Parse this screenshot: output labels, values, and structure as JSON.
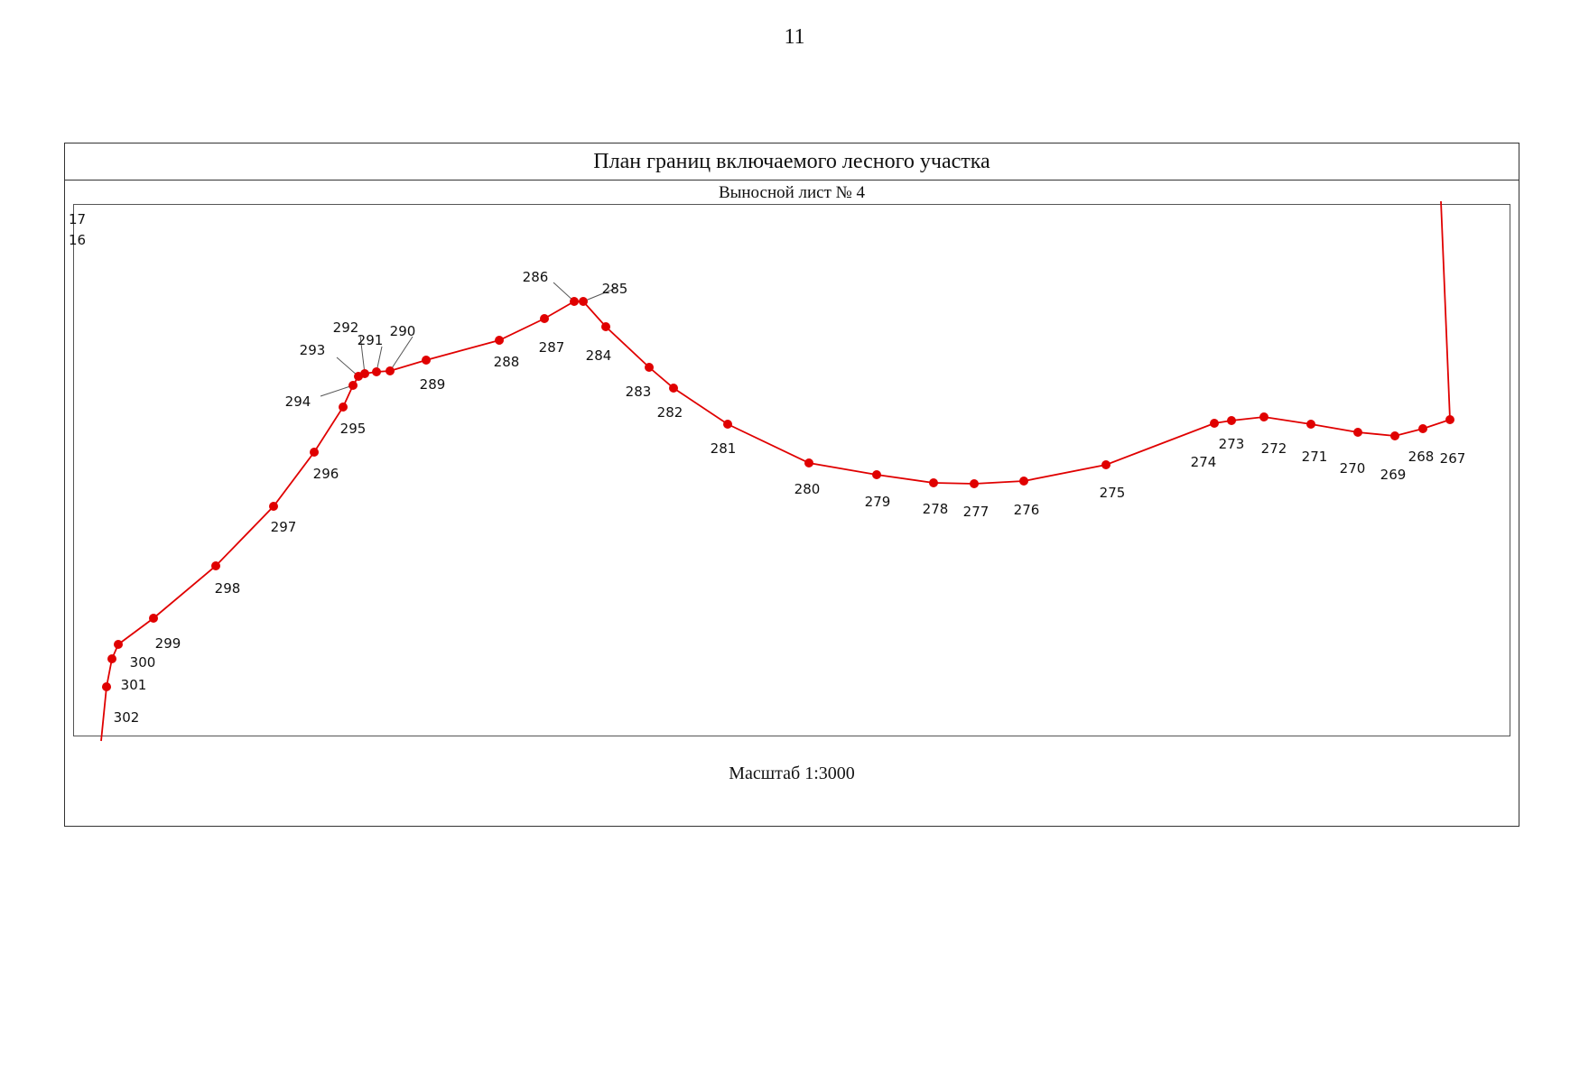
{
  "page_number": "11",
  "frame_title": "План границ включаемого лесного участка",
  "sheet_label": "Выносной лист № 4",
  "scale_label": "Масштаб 1:3000",
  "boundary_color": "#e00000",
  "edge_labels": [
    "17",
    "16"
  ],
  "boundary_points": [
    {
      "id": "267",
      "label": "267"
    },
    {
      "id": "268",
      "label": "268"
    },
    {
      "id": "269",
      "label": "269"
    },
    {
      "id": "270",
      "label": "270"
    },
    {
      "id": "271",
      "label": "271"
    },
    {
      "id": "272",
      "label": "272"
    },
    {
      "id": "273",
      "label": "273"
    },
    {
      "id": "274",
      "label": "274"
    },
    {
      "id": "275",
      "label": "275"
    },
    {
      "id": "276",
      "label": "276"
    },
    {
      "id": "277",
      "label": "277"
    },
    {
      "id": "278",
      "label": "278"
    },
    {
      "id": "279",
      "label": "279"
    },
    {
      "id": "280",
      "label": "280"
    },
    {
      "id": "281",
      "label": "281"
    },
    {
      "id": "282",
      "label": "282"
    },
    {
      "id": "283",
      "label": "283"
    },
    {
      "id": "284",
      "label": "284"
    },
    {
      "id": "285",
      "label": "285"
    },
    {
      "id": "286",
      "label": "286"
    },
    {
      "id": "287",
      "label": "287"
    },
    {
      "id": "288",
      "label": "288"
    },
    {
      "id": "289",
      "label": "289"
    },
    {
      "id": "290",
      "label": "290"
    },
    {
      "id": "291",
      "label": "291"
    },
    {
      "id": "292",
      "label": "292"
    },
    {
      "id": "293",
      "label": "293"
    },
    {
      "id": "294",
      "label": "294"
    },
    {
      "id": "295",
      "label": "295"
    },
    {
      "id": "296",
      "label": "296"
    },
    {
      "id": "297",
      "label": "297"
    },
    {
      "id": "298",
      "label": "298"
    },
    {
      "id": "299",
      "label": "299"
    },
    {
      "id": "300",
      "label": "300"
    },
    {
      "id": "301",
      "label": "301"
    },
    {
      "id": "302",
      "label": "302"
    }
  ]
}
